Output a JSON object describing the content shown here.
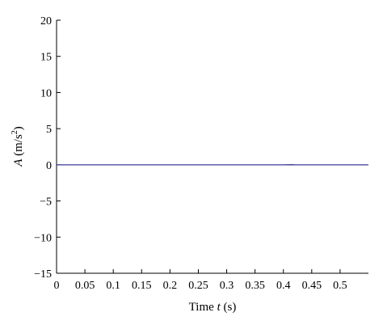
{
  "chart_data": {
    "type": "line",
    "title": "",
    "xlabel": {
      "prefix": "Time ",
      "variable": "t",
      "suffix": " (s)"
    },
    "ylabel": {
      "variable": "A",
      "unit_base": " (m/s",
      "unit_exp": "2",
      "unit_close": ")"
    },
    "xlim": [
      0,
      0.55
    ],
    "ylim": [
      -15,
      20
    ],
    "xticks": [
      "0",
      "0.05",
      "0.1",
      "0.15",
      "0.2",
      "0.25",
      "0.3",
      "0.35",
      "0.4",
      "0.45",
      "0.5"
    ],
    "yticks": [
      "−15",
      "−10",
      "−5",
      "0",
      "5",
      "10",
      "15",
      "20"
    ],
    "grid": false,
    "series": [
      {
        "color": "#3a3a9a",
        "x": [
          0,
          0.05,
          0.1,
          0.15,
          0.2,
          0.25,
          0.3,
          0.35,
          0.4,
          0.415,
          0.42,
          0.45,
          0.5,
          0.55
        ],
        "y": [
          0,
          0,
          0,
          0,
          0,
          0,
          0,
          0,
          0,
          0.02,
          0,
          0,
          0,
          0
        ]
      }
    ]
  }
}
